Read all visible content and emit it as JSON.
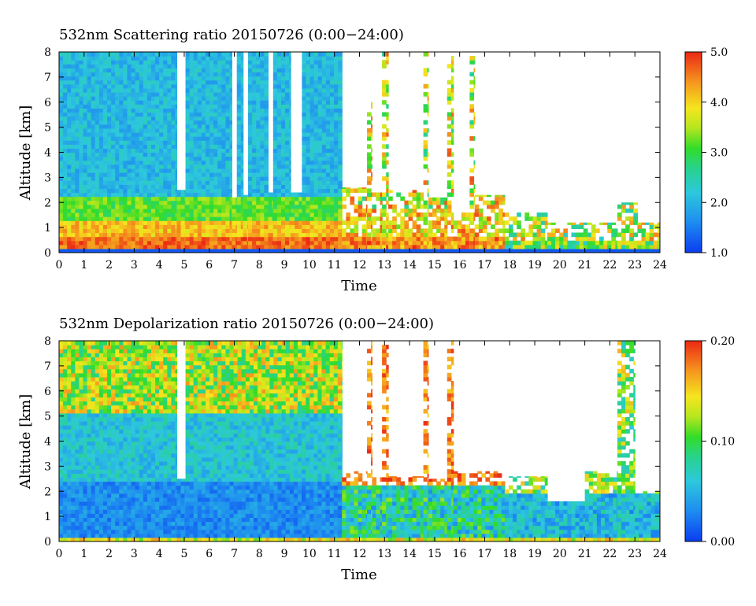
{
  "chart_data": [
    {
      "type": "heatmap",
      "title": "532nm Scattering ratio  20150726 (0:00−24:00)",
      "xlabel": "Time",
      "ylabel": "Altitude [km]",
      "xlim": [
        0,
        24
      ],
      "ylim": [
        0,
        8
      ],
      "x_ticks": [
        "0",
        "1",
        "2",
        "3",
        "4",
        "5",
        "6",
        "7",
        "8",
        "9",
        "10",
        "11",
        "12",
        "13",
        "14",
        "15",
        "16",
        "17",
        "18",
        "19",
        "20",
        "21",
        "22",
        "23",
        "24"
      ],
      "y_ticks": [
        "0",
        "1",
        "2",
        "3",
        "4",
        "5",
        "6",
        "7",
        "8"
      ],
      "colorbar": {
        "min": 1.0,
        "max": 5.0,
        "ticks": [
          "1.0",
          "2.0",
          "3.0",
          "4.0",
          "5.0"
        ]
      },
      "columns": [
        {
          "t0": 0.0,
          "t1": 4.7,
          "top": 8.0,
          "mode": "aerosol"
        },
        {
          "t0": 4.7,
          "t1": 5.05,
          "top": 2.5,
          "mode": "aerosol"
        },
        {
          "t0": 5.05,
          "t1": 6.9,
          "top": 8.0,
          "mode": "aerosol"
        },
        {
          "t0": 6.9,
          "t1": 7.1,
          "top": 2.2,
          "mode": "aerosol"
        },
        {
          "t0": 7.1,
          "t1": 7.35,
          "top": 8.0,
          "mode": "aerosol"
        },
        {
          "t0": 7.35,
          "t1": 7.55,
          "top": 2.3,
          "mode": "aerosol"
        },
        {
          "t0": 7.55,
          "t1": 8.35,
          "top": 8.0,
          "mode": "aerosol"
        },
        {
          "t0": 8.35,
          "t1": 8.55,
          "top": 2.4,
          "mode": "aerosol"
        },
        {
          "t0": 8.55,
          "t1": 9.25,
          "top": 8.0,
          "mode": "aerosol"
        },
        {
          "t0": 9.25,
          "t1": 9.7,
          "top": 2.4,
          "mode": "aerosol"
        },
        {
          "t0": 9.7,
          "t1": 11.3,
          "top": 8.0,
          "mode": "aerosol"
        },
        {
          "t0": 11.3,
          "t1": 12.3,
          "top": 2.6,
          "mode": "broken"
        },
        {
          "t0": 12.3,
          "t1": 12.5,
          "top": 6.0,
          "mode": "broken"
        },
        {
          "t0": 12.5,
          "t1": 12.9,
          "top": 2.4,
          "mode": "broken"
        },
        {
          "t0": 12.9,
          "t1": 13.15,
          "top": 8.0,
          "mode": "broken"
        },
        {
          "t0": 13.15,
          "t1": 14.55,
          "top": 2.5,
          "mode": "broken"
        },
        {
          "t0": 14.55,
          "t1": 14.75,
          "top": 8.0,
          "mode": "broken"
        },
        {
          "t0": 14.75,
          "t1": 15.5,
          "top": 2.2,
          "mode": "broken"
        },
        {
          "t0": 15.5,
          "t1": 15.75,
          "top": 8.0,
          "mode": "broken"
        },
        {
          "t0": 15.75,
          "t1": 16.4,
          "top": 1.6,
          "mode": "broken"
        },
        {
          "t0": 16.4,
          "t1": 16.6,
          "top": 8.0,
          "mode": "broken"
        },
        {
          "t0": 16.6,
          "t1": 17.8,
          "top": 2.3,
          "mode": "broken"
        },
        {
          "t0": 17.8,
          "t1": 19.5,
          "top": 1.6,
          "mode": "clean"
        },
        {
          "t0": 19.5,
          "t1": 22.3,
          "top": 1.2,
          "mode": "clean"
        },
        {
          "t0": 22.3,
          "t1": 23.1,
          "top": 2.0,
          "mode": "clean"
        },
        {
          "t0": 23.1,
          "t1": 24.0,
          "top": 1.2,
          "mode": "clean"
        }
      ]
    },
    {
      "type": "heatmap",
      "title": "532nm Depolarization ratio  20150726 (0:00−24:00)",
      "xlabel": "Time",
      "ylabel": "Altitude [km]",
      "xlim": [
        0,
        24
      ],
      "ylim": [
        0,
        8
      ],
      "x_ticks": [
        "0",
        "1",
        "2",
        "3",
        "4",
        "5",
        "6",
        "7",
        "8",
        "9",
        "10",
        "11",
        "12",
        "13",
        "14",
        "15",
        "16",
        "17",
        "18",
        "19",
        "20",
        "21",
        "22",
        "23",
        "24"
      ],
      "y_ticks": [
        "0",
        "1",
        "2",
        "3",
        "4",
        "5",
        "6",
        "7",
        "8"
      ],
      "colorbar": {
        "min": 0.0,
        "max": 0.2,
        "ticks": [
          "0.00",
          "0.10",
          "0.20"
        ]
      },
      "columns": [
        {
          "t0": 0.0,
          "t1": 4.7,
          "top": 8.0,
          "mode": "aerosol"
        },
        {
          "t0": 4.7,
          "t1": 5.05,
          "top": 2.5,
          "mode": "aerosol"
        },
        {
          "t0": 5.05,
          "t1": 11.3,
          "top": 8.0,
          "mode": "aerosol"
        },
        {
          "t0": 11.3,
          "t1": 12.3,
          "top": 2.8,
          "mode": "broken"
        },
        {
          "t0": 12.3,
          "t1": 12.5,
          "top": 8.0,
          "mode": "broken"
        },
        {
          "t0": 12.5,
          "t1": 12.9,
          "top": 2.6,
          "mode": "broken"
        },
        {
          "t0": 12.9,
          "t1": 13.15,
          "top": 8.0,
          "mode": "broken"
        },
        {
          "t0": 13.15,
          "t1": 14.55,
          "top": 2.6,
          "mode": "broken"
        },
        {
          "t0": 14.55,
          "t1": 14.75,
          "top": 8.0,
          "mode": "broken"
        },
        {
          "t0": 14.75,
          "t1": 15.5,
          "top": 2.5,
          "mode": "broken"
        },
        {
          "t0": 15.5,
          "t1": 15.75,
          "top": 8.0,
          "mode": "broken"
        },
        {
          "t0": 15.75,
          "t1": 17.8,
          "top": 2.8,
          "mode": "broken"
        },
        {
          "t0": 17.8,
          "t1": 19.5,
          "top": 2.6,
          "mode": "clean"
        },
        {
          "t0": 19.5,
          "t1": 21.0,
          "top": 1.6,
          "mode": "clean"
        },
        {
          "t0": 21.0,
          "t1": 22.3,
          "top": 2.8,
          "mode": "clean"
        },
        {
          "t0": 22.3,
          "t1": 23.0,
          "top": 8.0,
          "mode": "clean"
        },
        {
          "t0": 23.0,
          "t1": 24.0,
          "top": 2.0,
          "mode": "clean"
        }
      ]
    }
  ]
}
